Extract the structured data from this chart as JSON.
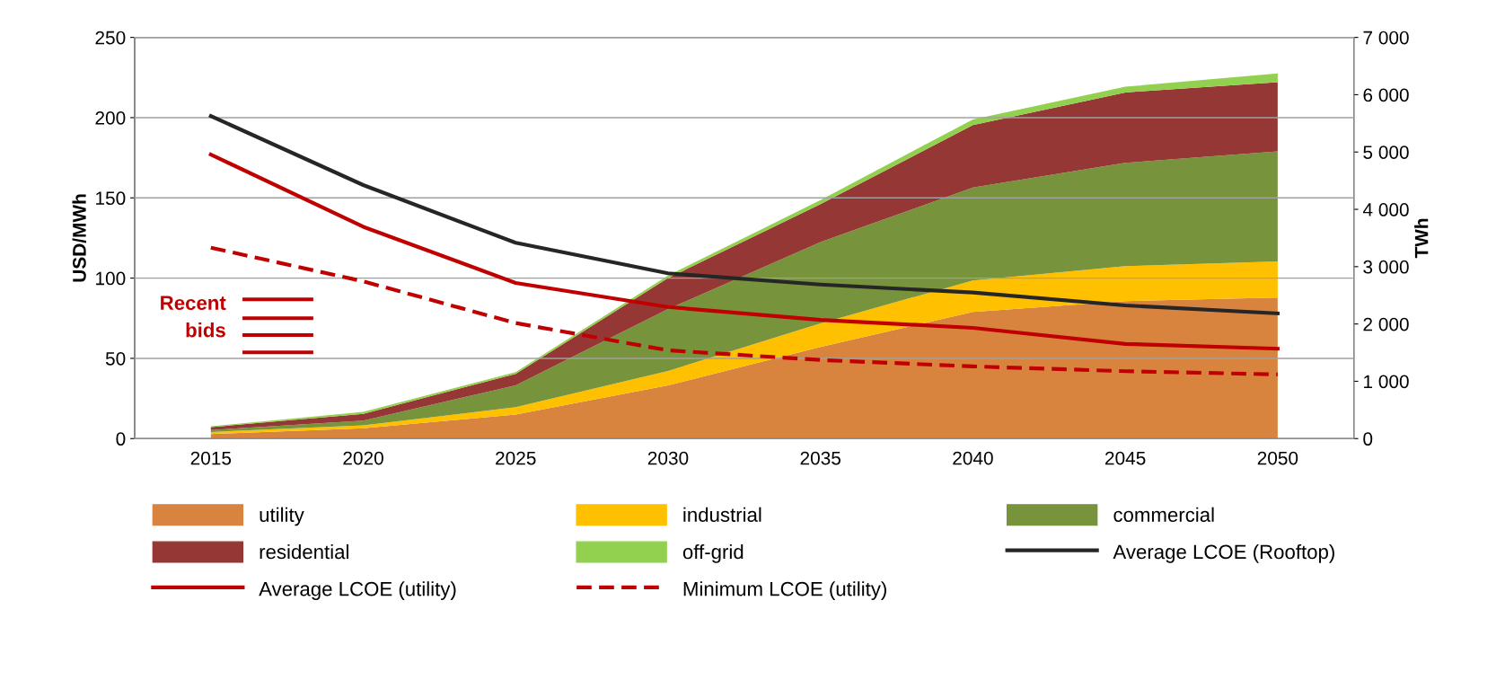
{
  "chart_data": {
    "type": "line",
    "ylabel": "USD/MWh",
    "y2label": "TWh",
    "categories": [
      "2015",
      "2020",
      "2025",
      "2030",
      "2035",
      "2040",
      "2045",
      "2050"
    ],
    "ylim": [
      0,
      250
    ],
    "yticks": [
      0,
      50,
      100,
      150,
      200,
      250
    ],
    "y2lim": [
      0,
      7000
    ],
    "y2ticks": [
      0,
      {
        "value": 1000,
        "label": "1 000"
      },
      {
        "value": 2000,
        "label": "2 000"
      },
      {
        "value": 3000,
        "label": "3 000"
      },
      {
        "value": 4000,
        "label": "4 000"
      },
      {
        "value": 5000,
        "label": "5 000"
      },
      {
        "value": 6000,
        "label": "6 000"
      },
      {
        "value": 7000,
        "label": "7 000"
      }
    ],
    "stacked": true,
    "grid": "y",
    "legend": "bottom",
    "series": [
      {
        "name": "utility",
        "type": "area",
        "axis": "y2",
        "color": "#d9843e",
        "values": [
          80,
          180,
          420,
          930,
          1600,
          2210,
          2400,
          2460
        ]
      },
      {
        "name": "industrial",
        "type": "area",
        "axis": "y2",
        "color": "#ffc000",
        "values": [
          35,
          50,
          130,
          250,
          410,
          550,
          610,
          630
        ]
      },
      {
        "name": "commercial",
        "type": "area",
        "axis": "y2",
        "color": "#77933c",
        "values": [
          35,
          85,
          380,
          1080,
          1420,
          1620,
          1800,
          1920
        ]
      },
      {
        "name": "residential",
        "type": "area",
        "axis": "y2",
        "color": "#953735",
        "values": [
          50,
          115,
          200,
          540,
          660,
          1090,
          1230,
          1210
        ]
      },
      {
        "name": "off-grid",
        "type": "area",
        "axis": "y2",
        "color": "#92d050",
        "values": [
          15,
          35,
          30,
          45,
          70,
          100,
          100,
          150
        ]
      },
      {
        "name": "Average LCOE (Rooftop)",
        "color": "#262626",
        "line_style": "solid",
        "values": [
          201,
          158,
          122,
          103,
          96,
          91,
          83,
          78
        ]
      },
      {
        "name": "Average LCOE (utility)",
        "color": "#c00000",
        "line_style": "solid",
        "values": [
          177,
          132,
          97,
          82,
          74,
          69,
          59,
          56
        ]
      },
      {
        "name": "Minimum LCOE (utility)",
        "color": "#c00000",
        "line_style": "dashed",
        "values": [
          119,
          98,
          72,
          55,
          49,
          45,
          42,
          40
        ]
      }
    ],
    "annotations": [
      "Recent\nbids"
    ]
  }
}
